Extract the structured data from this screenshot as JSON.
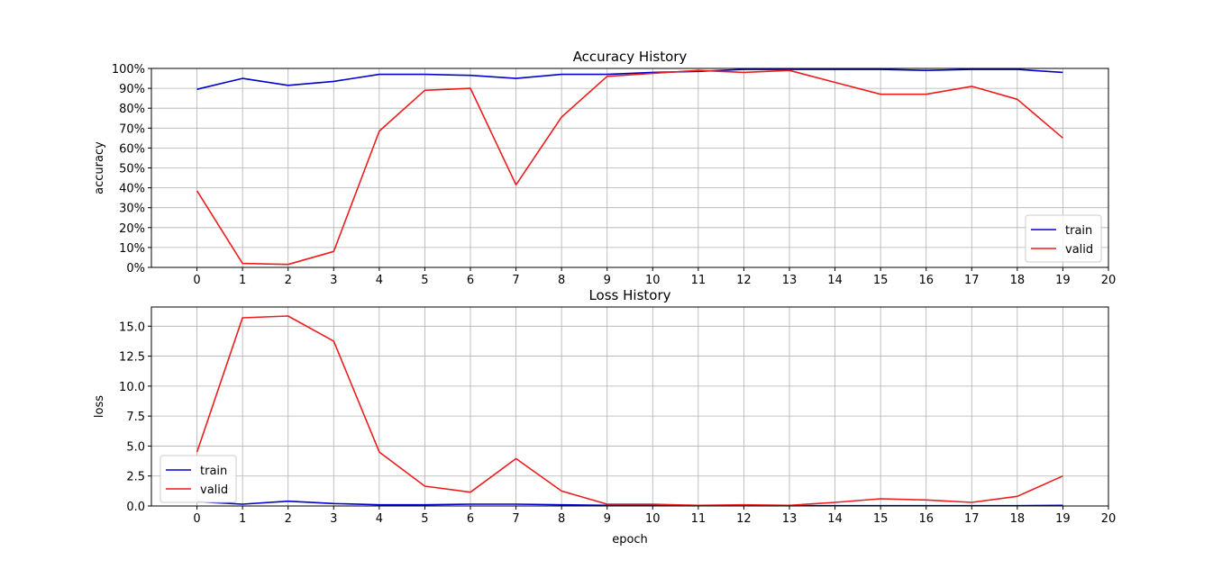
{
  "chart_data": [
    {
      "type": "line",
      "title": "Accuracy History",
      "xlabel": "",
      "ylabel": "accuracy",
      "x": [
        0,
        1,
        2,
        3,
        4,
        5,
        6,
        7,
        8,
        9,
        10,
        11,
        12,
        13,
        14,
        15,
        16,
        17,
        18,
        19
      ],
      "xlim": [
        -1,
        20
      ],
      "xticks": [
        0,
        1,
        2,
        3,
        4,
        5,
        6,
        7,
        8,
        9,
        10,
        11,
        12,
        13,
        14,
        15,
        16,
        17,
        18,
        19,
        20
      ],
      "ylim": [
        0,
        100
      ],
      "yticks": [
        0,
        10,
        20,
        30,
        40,
        50,
        60,
        70,
        80,
        90,
        100
      ],
      "ytick_suffix": "%",
      "grid": true,
      "legend_position": "lower right",
      "series": [
        {
          "name": "train",
          "color": "#0000cc",
          "values": [
            89.5,
            95,
            91.5,
            93.5,
            97,
            97,
            96.5,
            95,
            97,
            97,
            98,
            98.5,
            99.5,
            99.5,
            99.5,
            99.5,
            99,
            99.5,
            99.5,
            98
          ]
        },
        {
          "name": "valid",
          "color": "#ee1c1c",
          "values": [
            38.5,
            2,
            1.5,
            8,
            68.5,
            89,
            90,
            41.5,
            75.5,
            96,
            97.5,
            99,
            98,
            99,
            93,
            87,
            87,
            91,
            84.5,
            65
          ]
        }
      ]
    },
    {
      "type": "line",
      "title": "Loss History",
      "xlabel": "epoch",
      "ylabel": "loss",
      "x": [
        0,
        1,
        2,
        3,
        4,
        5,
        6,
        7,
        8,
        9,
        10,
        11,
        12,
        13,
        14,
        15,
        16,
        17,
        18,
        19
      ],
      "xlim": [
        -1,
        20
      ],
      "xticks": [
        0,
        1,
        2,
        3,
        4,
        5,
        6,
        7,
        8,
        9,
        10,
        11,
        12,
        13,
        14,
        15,
        16,
        17,
        18,
        19,
        20
      ],
      "ylim": [
        0,
        16.6
      ],
      "yticks": [
        "0.0",
        "2.5",
        "5.0",
        "7.5",
        "10.0",
        "12.5",
        "15.0"
      ],
      "grid": true,
      "legend_position": "lower left",
      "series": [
        {
          "name": "train",
          "color": "#0000cc",
          "values": [
            0.35,
            0.15,
            0.4,
            0.2,
            0.1,
            0.1,
            0.15,
            0.15,
            0.1,
            0.05,
            0.05,
            0.02,
            0.02,
            0.02,
            0.02,
            0.02,
            0.02,
            0.02,
            0.02,
            0.05
          ]
        },
        {
          "name": "valid",
          "color": "#ee1c1c",
          "values": [
            4.5,
            15.7,
            15.85,
            13.75,
            4.5,
            1.65,
            1.15,
            3.95,
            1.25,
            0.15,
            0.15,
            0.05,
            0.1,
            0.05,
            0.3,
            0.6,
            0.5,
            0.3,
            0.8,
            2.5
          ]
        }
      ]
    }
  ]
}
